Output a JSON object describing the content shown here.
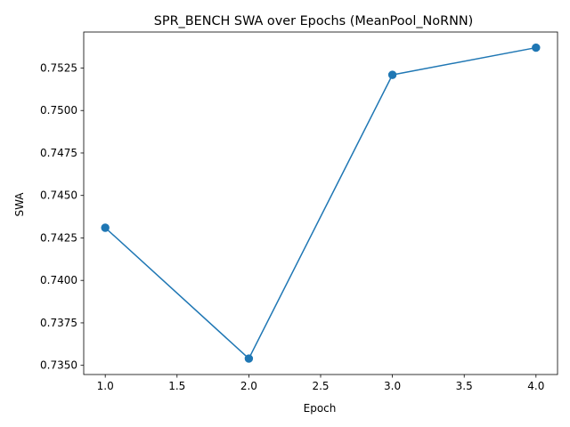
{
  "chart_data": {
    "type": "line",
    "title": "SPR_BENCH SWA over Epochs (MeanPool_NoRNN)",
    "xlabel": "Epoch",
    "ylabel": "SWA",
    "x": [
      1,
      2,
      3,
      4
    ],
    "series": [
      {
        "values": [
          0.7431,
          0.7354,
          0.7521,
          0.7537
        ],
        "color": "#1f77b4",
        "marker": "circle"
      }
    ],
    "xlim": [
      0.85,
      4.15
    ],
    "ylim": [
      0.73446,
      0.75462
    ],
    "xticks": [
      1.0,
      1.5,
      2.0,
      2.5,
      3.0,
      3.5,
      4.0
    ],
    "xtick_labels": [
      "1.0",
      "1.5",
      "2.0",
      "2.5",
      "3.0",
      "3.5",
      "4.0"
    ],
    "yticks": [
      0.735,
      0.7375,
      0.74,
      0.7425,
      0.745,
      0.7475,
      0.75,
      0.7525
    ],
    "ytick_labels": [
      "0.7350",
      "0.7375",
      "0.7400",
      "0.7425",
      "0.7450",
      "0.7475",
      "0.7500",
      "0.7525"
    ],
    "grid": false,
    "legend": false
  }
}
